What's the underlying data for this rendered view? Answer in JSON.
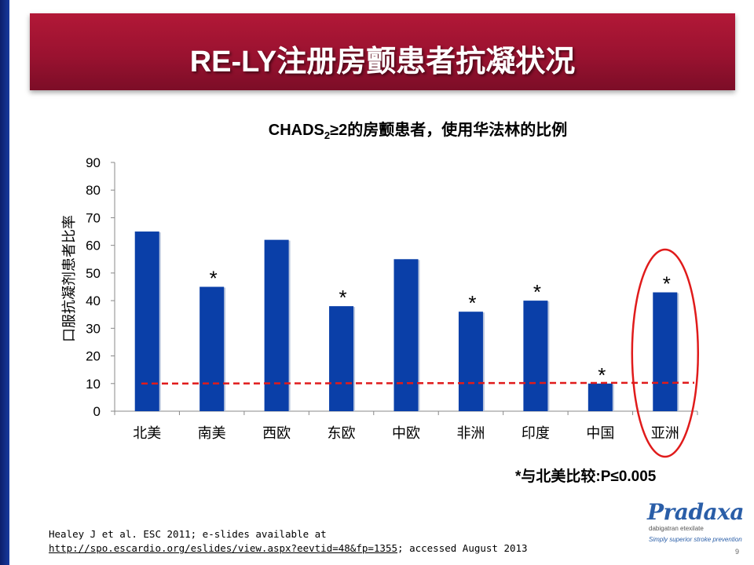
{
  "slide": {
    "title": "RE-LY注册房颤患者抗凝状况",
    "page_number": "9"
  },
  "chart_data": {
    "type": "bar",
    "title_prefix": "CHADS",
    "title_sub": "2",
    "title_suffix": "≥2的房颤患者，使用华法林的比例",
    "ylabel": "口服抗凝剂患者比率",
    "xlabel": "",
    "ylim": [
      0,
      90
    ],
    "yticks": [
      0,
      10,
      20,
      30,
      40,
      50,
      60,
      70,
      80,
      90
    ],
    "categories": [
      "北美",
      "南美",
      "西欧",
      "东欧",
      "中欧",
      "非洲",
      "印度",
      "中国",
      "亚洲"
    ],
    "values": [
      65,
      45,
      62,
      38,
      55,
      36,
      40,
      10,
      43
    ],
    "significant": [
      false,
      true,
      false,
      true,
      false,
      true,
      true,
      true,
      true
    ],
    "significance_marker": "*",
    "reference_line": 10,
    "highlighted_category": "亚洲",
    "bar_color": "#0a3fa8",
    "reference_color": "#e01b1b",
    "highlight_color": "#e01b1b"
  },
  "footnote": "*与北美比较:P≤0.005",
  "citation": {
    "line1": "Healey J et al. ESC 2011; e-slides available at",
    "link": "http://spo.escardio.org/eslides/view.aspx?eevtid=48&fp=1355",
    "line2_suffix": "; accessed August 2013"
  },
  "logo": {
    "brand": "Pradaxa",
    "subtitle": "dabigatran etexilate",
    "tagline": "Simply superior stroke prevention"
  }
}
